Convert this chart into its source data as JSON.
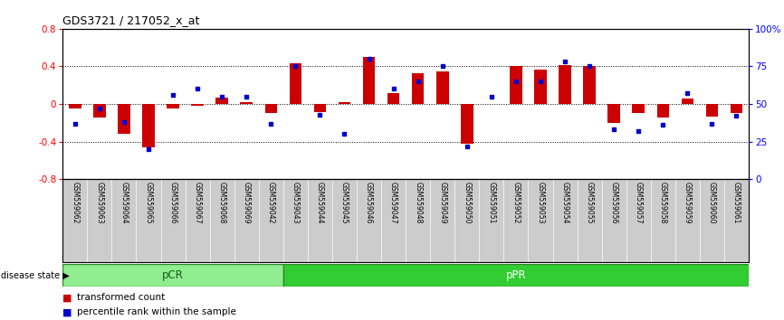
{
  "title": "GDS3721 / 217052_x_at",
  "samples": [
    "GSM559062",
    "GSM559063",
    "GSM559064",
    "GSM559065",
    "GSM559066",
    "GSM559067",
    "GSM559068",
    "GSM559069",
    "GSM559042",
    "GSM559043",
    "GSM559044",
    "GSM559045",
    "GSM559046",
    "GSM559047",
    "GSM559048",
    "GSM559049",
    "GSM559050",
    "GSM559051",
    "GSM559052",
    "GSM559053",
    "GSM559054",
    "GSM559055",
    "GSM559056",
    "GSM559057",
    "GSM559058",
    "GSM559059",
    "GSM559060",
    "GSM559061"
  ],
  "transformed_count": [
    -0.05,
    -0.14,
    -0.32,
    -0.46,
    -0.05,
    -0.02,
    0.07,
    0.02,
    -0.1,
    0.43,
    -0.09,
    0.02,
    0.5,
    0.12,
    0.33,
    0.35,
    -0.42,
    0.0,
    0.4,
    0.37,
    0.41,
    0.4,
    -0.2,
    -0.1,
    -0.14,
    0.06,
    -0.13,
    -0.1
  ],
  "percentile_rank": [
    37,
    47,
    38,
    20,
    56,
    60,
    55,
    55,
    37,
    75,
    43,
    30,
    80,
    60,
    65,
    75,
    22,
    55,
    65,
    65,
    78,
    75,
    33,
    32,
    36,
    57,
    37,
    42
  ],
  "pcr_count": 9,
  "ppr_count": 19,
  "ylim_left": [
    -0.8,
    0.8
  ],
  "ylim_right": [
    0,
    100
  ],
  "yticks_left": [
    -0.8,
    -0.4,
    0.0,
    0.4,
    0.8
  ],
  "yticks_right": [
    0,
    25,
    50,
    75,
    100
  ],
  "ytick_labels_right": [
    "0",
    "25",
    "50",
    "75",
    "100%"
  ],
  "bar_color": "#cc0000",
  "dot_color": "#0000cc",
  "pcr_color": "#90ee90",
  "ppr_color": "#32cd32",
  "background_color": "#ffffff",
  "legend_items": [
    "transformed count",
    "percentile rank within the sample"
  ]
}
